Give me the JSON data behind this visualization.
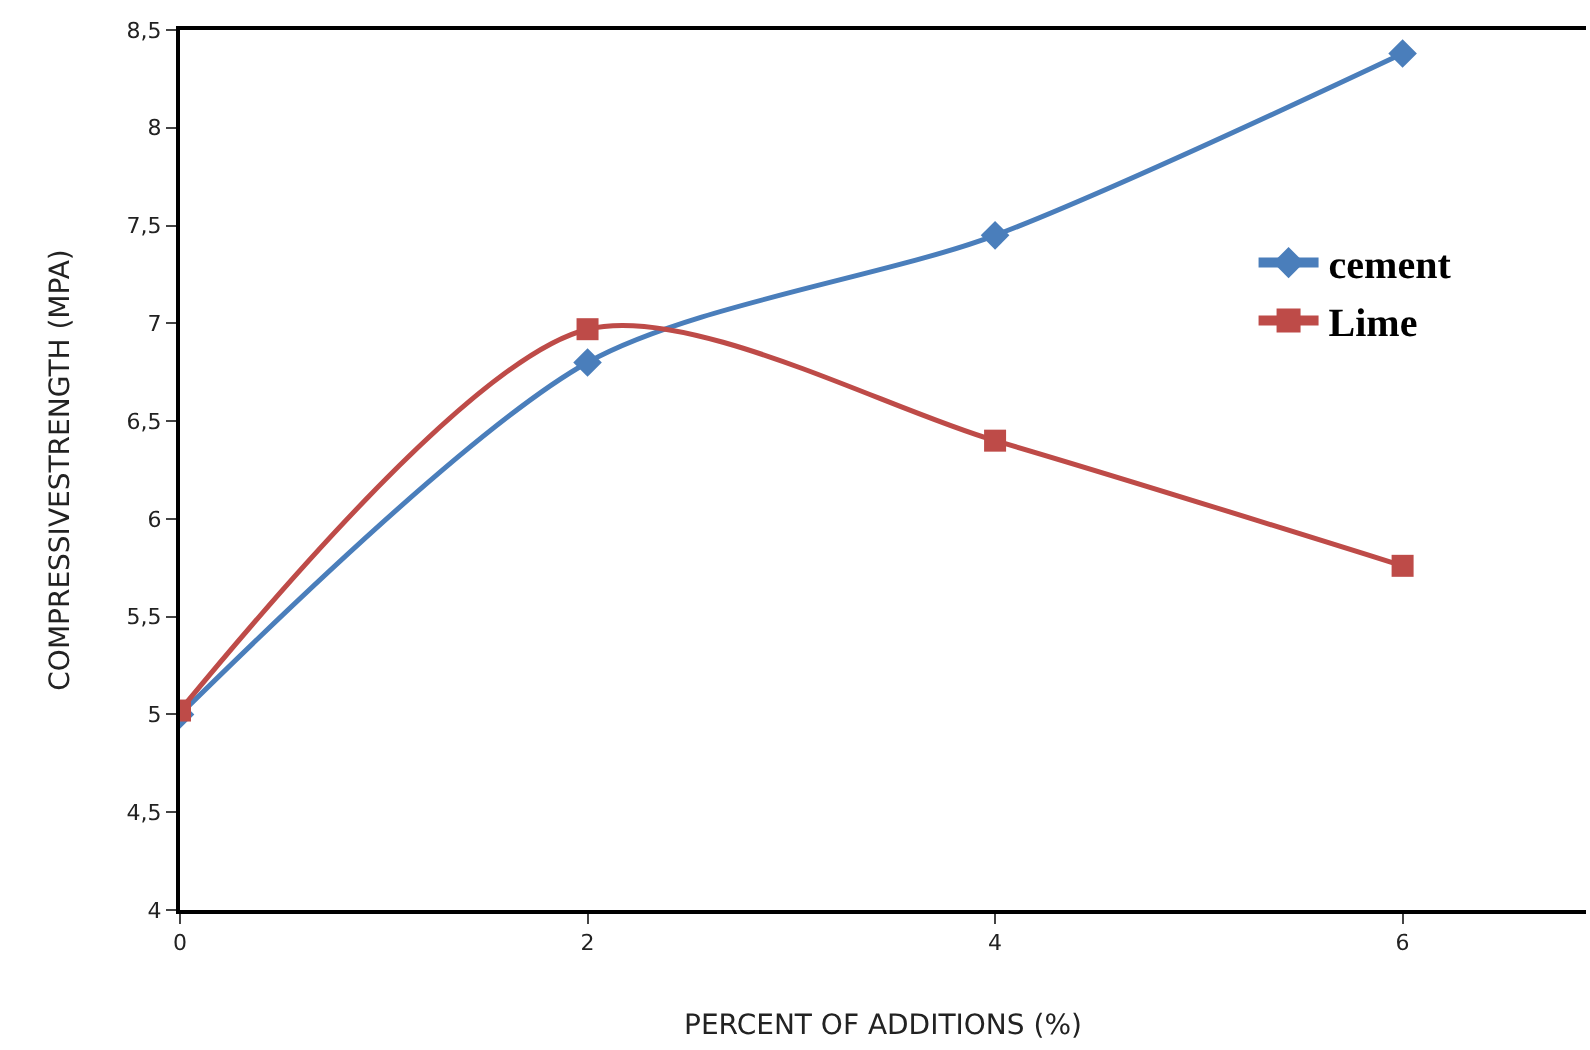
{
  "chart_data": {
    "type": "line",
    "xlabel": "PERCENT OF ADDITIONS (%)",
    "ylabel": "COMPRESSIVESTRENGTH (MPA)",
    "x": [
      0,
      2,
      4,
      6
    ],
    "series": [
      {
        "name": "cement",
        "color": "#4a7ebb",
        "marker": "diamond",
        "values": [
          5.0,
          6.8,
          7.45,
          8.38
        ]
      },
      {
        "name": "Lime",
        "color": "#be4b48",
        "marker": "square",
        "values": [
          5.02,
          6.97,
          6.4,
          5.76
        ]
      }
    ],
    "xlim": [
      0,
      6.9
    ],
    "xticks": [
      0,
      2,
      4,
      6
    ],
    "ylim": [
      4,
      8.5
    ],
    "yticks": [
      4,
      {
        "value": 4.5,
        "label": "4,5"
      },
      5,
      {
        "value": 5.5,
        "label": "5,5"
      },
      6,
      {
        "value": 6.5,
        "label": "6,5"
      },
      7,
      {
        "value": 7.5,
        "label": "7,5"
      },
      8,
      {
        "value": 8.5,
        "label": "8,5"
      }
    ],
    "legend": "right",
    "line_style": "solid"
  }
}
